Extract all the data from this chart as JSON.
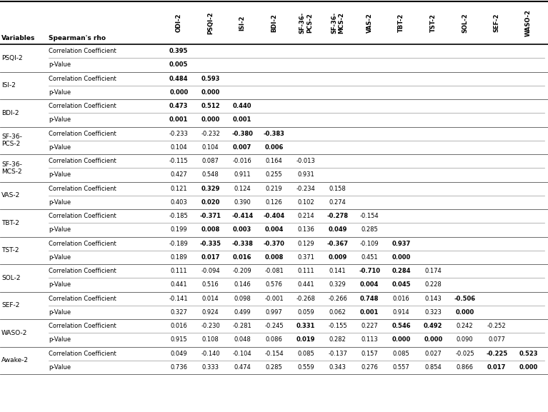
{
  "col_headers": [
    "ODI-2",
    "PSQI-2",
    "ISI-2",
    "BDI-2",
    "SF-36-\nPCS-2",
    "SF-36-\nMCS-2",
    "VAS-2",
    "TBT-2",
    "TST-2",
    "SOL-2",
    "SEF-2",
    "WASO-2"
  ],
  "row_groups": [
    {
      "label": "PSQI-2",
      "corr": [
        "0.395",
        "",
        "",
        "",
        "",
        "",
        "",
        "",
        "",
        "",
        "",
        ""
      ],
      "pval": [
        "0.005",
        "",
        "",
        "",
        "",
        "",
        "",
        "",
        "",
        "",
        "",
        ""
      ],
      "corr_bold": [
        true,
        false,
        false,
        false,
        false,
        false,
        false,
        false,
        false,
        false,
        false,
        false
      ],
      "pval_bold": [
        true,
        false,
        false,
        false,
        false,
        false,
        false,
        false,
        false,
        false,
        false,
        false
      ]
    },
    {
      "label": "ISI-2",
      "corr": [
        "0.484",
        "0.593",
        "",
        "",
        "",
        "",
        "",
        "",
        "",
        "",
        "",
        ""
      ],
      "pval": [
        "0.000",
        "0.000",
        "",
        "",
        "",
        "",
        "",
        "",
        "",
        "",
        "",
        ""
      ],
      "corr_bold": [
        true,
        true,
        false,
        false,
        false,
        false,
        false,
        false,
        false,
        false,
        false,
        false
      ],
      "pval_bold": [
        true,
        true,
        false,
        false,
        false,
        false,
        false,
        false,
        false,
        false,
        false,
        false
      ]
    },
    {
      "label": "BDI-2",
      "corr": [
        "0.473",
        "0.512",
        "0.440",
        "",
        "",
        "",
        "",
        "",
        "",
        "",
        "",
        ""
      ],
      "pval": [
        "0.001",
        "0.000",
        "0.001",
        "",
        "",
        "",
        "",
        "",
        "",
        "",
        "",
        ""
      ],
      "corr_bold": [
        true,
        true,
        true,
        false,
        false,
        false,
        false,
        false,
        false,
        false,
        false,
        false
      ],
      "pval_bold": [
        true,
        true,
        true,
        false,
        false,
        false,
        false,
        false,
        false,
        false,
        false,
        false
      ]
    },
    {
      "label": "SF-36-\nPCS-2",
      "corr": [
        "-0.233",
        "-0.232",
        "-0.380",
        "-0.383",
        "",
        "",
        "",
        "",
        "",
        "",
        "",
        ""
      ],
      "pval": [
        "0.104",
        "0.104",
        "0.007",
        "0.006",
        "",
        "",
        "",
        "",
        "",
        "",
        "",
        ""
      ],
      "corr_bold": [
        false,
        false,
        true,
        true,
        false,
        false,
        false,
        false,
        false,
        false,
        false,
        false
      ],
      "pval_bold": [
        false,
        false,
        true,
        true,
        false,
        false,
        false,
        false,
        false,
        false,
        false,
        false
      ]
    },
    {
      "label": "SF-36-\nMCS-2",
      "corr": [
        "-0.115",
        "0.087",
        "-0.016",
        "0.164",
        "-0.013",
        "",
        "",
        "",
        "",
        "",
        "",
        ""
      ],
      "pval": [
        "0.427",
        "0.548",
        "0.911",
        "0.255",
        "0.931",
        "",
        "",
        "",
        "",
        "",
        "",
        ""
      ],
      "corr_bold": [
        false,
        false,
        false,
        false,
        false,
        false,
        false,
        false,
        false,
        false,
        false,
        false
      ],
      "pval_bold": [
        false,
        false,
        false,
        false,
        false,
        false,
        false,
        false,
        false,
        false,
        false,
        false
      ]
    },
    {
      "label": "VAS-2",
      "corr": [
        "0.121",
        "0.329",
        "0.124",
        "0.219",
        "-0.234",
        "0.158",
        "",
        "",
        "",
        "",
        "",
        ""
      ],
      "pval": [
        "0.403",
        "0.020",
        "0.390",
        "0.126",
        "0.102",
        "0.274",
        "",
        "",
        "",
        "",
        "",
        ""
      ],
      "corr_bold": [
        false,
        true,
        false,
        false,
        false,
        false,
        false,
        false,
        false,
        false,
        false,
        false
      ],
      "pval_bold": [
        false,
        true,
        false,
        false,
        false,
        false,
        false,
        false,
        false,
        false,
        false,
        false
      ]
    },
    {
      "label": "TBT-2",
      "corr": [
        "-0.185",
        "-0.371",
        "-0.414",
        "-0.404",
        "0.214",
        "-0.278",
        "-0.154",
        "",
        "",
        "",
        "",
        ""
      ],
      "pval": [
        "0.199",
        "0.008",
        "0.003",
        "0.004",
        "0.136",
        "0.049",
        "0.285",
        "",
        "",
        "",
        "",
        ""
      ],
      "corr_bold": [
        false,
        true,
        true,
        true,
        false,
        true,
        false,
        false,
        false,
        false,
        false,
        false
      ],
      "pval_bold": [
        false,
        true,
        true,
        true,
        false,
        true,
        false,
        false,
        false,
        false,
        false,
        false
      ]
    },
    {
      "label": "TST-2",
      "corr": [
        "-0.189",
        "-0.335",
        "-0.338",
        "-0.370",
        "0.129",
        "-0.367",
        "-0.109",
        "0.937",
        "",
        "",
        "",
        ""
      ],
      "pval": [
        "0.189",
        "0.017",
        "0.016",
        "0.008",
        "0.371",
        "0.009",
        "0.451",
        "0.000",
        "",
        "",
        "",
        ""
      ],
      "corr_bold": [
        false,
        true,
        true,
        true,
        false,
        true,
        false,
        true,
        false,
        false,
        false,
        false
      ],
      "pval_bold": [
        false,
        true,
        true,
        true,
        false,
        true,
        false,
        true,
        false,
        false,
        false,
        false
      ]
    },
    {
      "label": "SOL-2",
      "corr": [
        "0.111",
        "-0.094",
        "-0.209",
        "-0.081",
        "0.111",
        "0.141",
        "-0.710",
        "0.284",
        "0.174",
        "",
        "",
        ""
      ],
      "pval": [
        "0.441",
        "0.516",
        "0.146",
        "0.576",
        "0.441",
        "0.329",
        "0.004",
        "0.045",
        "0.228",
        "",
        "",
        ""
      ],
      "corr_bold": [
        false,
        false,
        false,
        false,
        false,
        false,
        true,
        true,
        false,
        false,
        false,
        false
      ],
      "pval_bold": [
        false,
        false,
        false,
        false,
        false,
        false,
        true,
        true,
        false,
        false,
        false,
        false
      ]
    },
    {
      "label": "SEF-2",
      "corr": [
        "-0.141",
        "0.014",
        "0.098",
        "-0.001",
        "-0.268",
        "-0.266",
        "0.748",
        "0.016",
        "0.143",
        "-0.506",
        "",
        ""
      ],
      "pval": [
        "0.327",
        "0.924",
        "0.499",
        "0.997",
        "0.059",
        "0.062",
        "0.001",
        "0.914",
        "0.323",
        "0.000",
        "",
        ""
      ],
      "corr_bold": [
        false,
        false,
        false,
        false,
        false,
        false,
        true,
        false,
        false,
        true,
        false,
        false
      ],
      "pval_bold": [
        false,
        false,
        false,
        false,
        false,
        false,
        true,
        false,
        false,
        true,
        false,
        false
      ]
    },
    {
      "label": "WASO-2",
      "corr": [
        "0.016",
        "-0.230",
        "-0.281",
        "-0.245",
        "0.331",
        "-0.155",
        "0.227",
        "0.546",
        "0.492",
        "0.242",
        "-0.252",
        ""
      ],
      "pval": [
        "0.915",
        "0.108",
        "0.048",
        "0.086",
        "0.019",
        "0.282",
        "0.113",
        "0.000",
        "0.000",
        "0.090",
        "0.077",
        ""
      ],
      "corr_bold": [
        false,
        false,
        false,
        false,
        true,
        false,
        false,
        true,
        true,
        false,
        false,
        false
      ],
      "pval_bold": [
        false,
        false,
        false,
        false,
        true,
        false,
        false,
        true,
        true,
        false,
        false,
        false
      ]
    },
    {
      "label": "Awake-2",
      "corr": [
        "0.049",
        "-0.140",
        "-0.104",
        "-0.154",
        "0.085",
        "-0.137",
        "0.157",
        "0.085",
        "0.027",
        "-0.025",
        "-0.225",
        "0.523"
      ],
      "pval": [
        "0.736",
        "0.333",
        "0.474",
        "0.285",
        "0.559",
        "0.343",
        "0.276",
        "0.557",
        "0.854",
        "0.866",
        "0.017",
        "0.000"
      ],
      "corr_bold": [
        false,
        false,
        false,
        false,
        false,
        false,
        false,
        false,
        false,
        false,
        true,
        true
      ],
      "pval_bold": [
        false,
        false,
        false,
        false,
        false,
        false,
        false,
        false,
        false,
        false,
        true,
        true
      ]
    }
  ],
  "bg_color": "#ffffff",
  "text_color": "#000000"
}
